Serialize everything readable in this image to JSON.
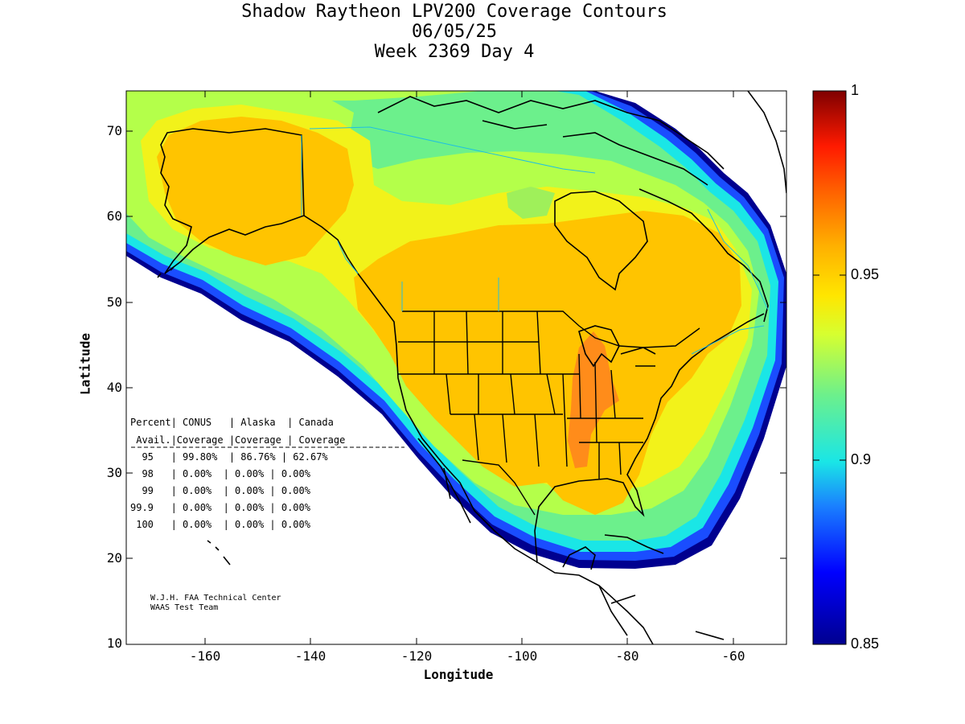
{
  "title": {
    "line1": "Shadow Raytheon LPV200 Coverage Contours",
    "line2": "06/05/25",
    "line3": "Week 2369 Day 4"
  },
  "axes": {
    "xlabel": "Longitude",
    "ylabel": "Latitude",
    "xlim": [
      -175,
      -50
    ],
    "ylim": [
      10,
      75
    ],
    "xticks": [
      "-160",
      "-140",
      "-120",
      "-100",
      "-80",
      "-60"
    ],
    "yticks": [
      "70",
      "60",
      "50",
      "40",
      "30",
      "20",
      "10"
    ]
  },
  "colorbar": {
    "min": 0.85,
    "max": 1,
    "ticks": [
      "1",
      "0.95",
      "0.9",
      "0.85"
    ]
  },
  "table": {
    "header1": "Percent| CONUS   | Alaska  | Canada",
    "header2": " Avail.|Coverage |Coverage | Coverage",
    "rows": [
      "  95   | 99.80%  | 86.76% | 62.67%",
      "  98   | 0.00%  | 0.00% | 0.00%",
      "  99   | 0.00%  | 0.00% | 0.00%",
      "99.9   | 0.00%  | 0.00% | 0.00%",
      " 100   | 0.00%  | 0.00% | 0.00%"
    ]
  },
  "credit": {
    "line1": "W.J.H. FAA Technical Center",
    "line2": "WAAS Test Team"
  },
  "colors": {
    "dark_red": "#7f0000",
    "orange": "#ff8c1a",
    "gold": "#ffc400",
    "yellow": "#f2f21a",
    "yellow_green": "#b4ff4a",
    "green": "#6cf08c",
    "cyan": "#1ae6e6",
    "blue": "#1a4dff",
    "navy": "#00008f"
  }
}
